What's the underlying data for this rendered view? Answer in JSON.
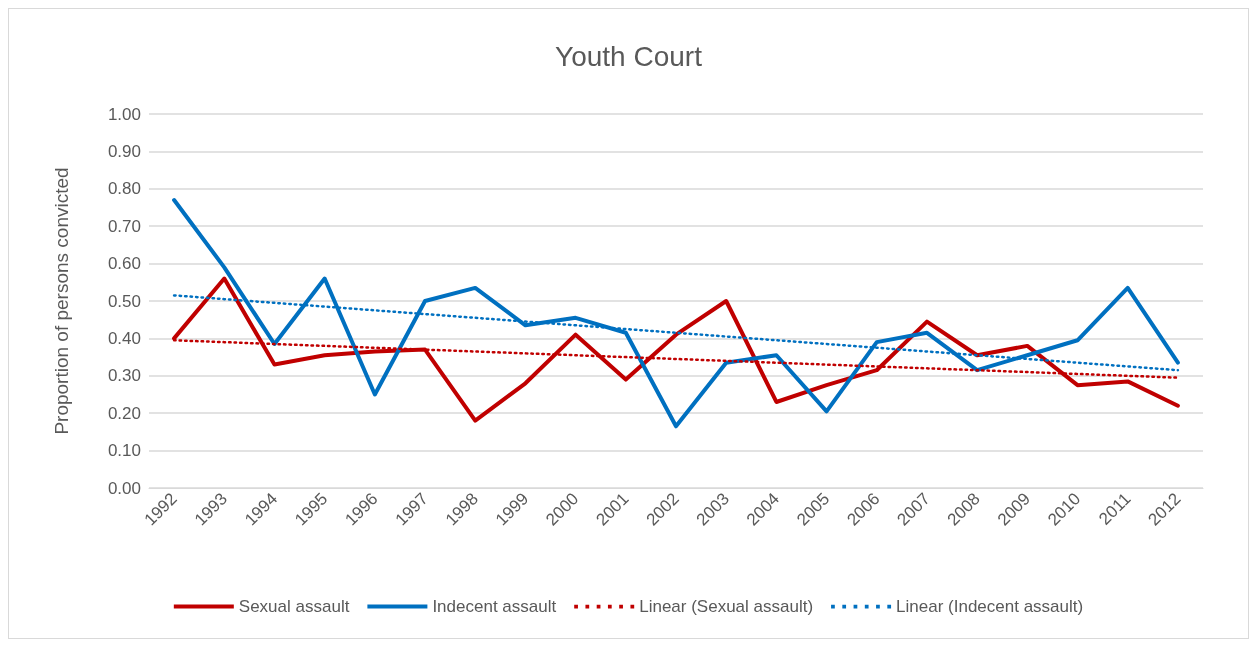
{
  "chart_data": {
    "type": "line",
    "title": "Youth Court",
    "ylabel": "Proportion of persons convicted",
    "categories": [
      "1992",
      "1993",
      "1994",
      "1995",
      "1996",
      "1997",
      "1998",
      "1999",
      "2000",
      "2001",
      "2002",
      "2003",
      "2004",
      "2005",
      "2006",
      "2007",
      "2008",
      "2009",
      "2010",
      "2011",
      "2012"
    ],
    "series": [
      {
        "name": "Sexual assault",
        "color": "#c00000",
        "line_style": "solid",
        "values": [
          0.4,
          0.56,
          0.33,
          0.355,
          0.365,
          0.37,
          0.18,
          0.28,
          0.41,
          0.29,
          0.41,
          0.5,
          0.23,
          0.275,
          0.315,
          0.445,
          0.355,
          0.38,
          0.275,
          0.285,
          0.22
        ]
      },
      {
        "name": "Indecent assault",
        "color": "#0070c0",
        "line_style": "solid",
        "values": [
          0.77,
          0.59,
          0.385,
          0.56,
          0.25,
          0.5,
          0.535,
          0.435,
          0.455,
          0.415,
          0.165,
          0.335,
          0.355,
          0.205,
          0.39,
          0.415,
          0.315,
          0.355,
          0.395,
          0.535,
          0.335
        ]
      },
      {
        "name": "Linear (Sexual assault)",
        "color": "#c00000",
        "line_style": "dotted",
        "values": [
          0.395,
          0.39,
          0.385,
          0.38,
          0.375,
          0.37,
          0.365,
          0.36,
          0.355,
          0.35,
          0.345,
          0.34,
          0.335,
          0.33,
          0.325,
          0.32,
          0.315,
          0.31,
          0.305,
          0.3,
          0.295
        ]
      },
      {
        "name": "Linear (Indecent assault)",
        "color": "#0070c0",
        "line_style": "dotted",
        "values": [
          0.515,
          0.505,
          0.495,
          0.485,
          0.475,
          0.465,
          0.455,
          0.445,
          0.435,
          0.425,
          0.415,
          0.405,
          0.395,
          0.385,
          0.375,
          0.365,
          0.355,
          0.345,
          0.335,
          0.325,
          0.315
        ]
      }
    ],
    "ylim": [
      0,
      1
    ],
    "yticks": [
      {
        "value": 0,
        "label": "0.00"
      },
      {
        "value": 0.1,
        "label": "0.10"
      },
      {
        "value": 0.2,
        "label": "0.20"
      },
      {
        "value": 0.3,
        "label": "0.30"
      },
      {
        "value": 0.4,
        "label": "0.40"
      },
      {
        "value": 0.5,
        "label": "0.50"
      },
      {
        "value": 0.6,
        "label": "0.60"
      },
      {
        "value": 0.7,
        "label": "0.70"
      },
      {
        "value": 0.8,
        "label": "0.80"
      },
      {
        "value": 0.9,
        "label": "0.90"
      },
      {
        "value": 1,
        "label": "1.00"
      }
    ],
    "grid": "y",
    "legend": "bottom",
    "marker": "none"
  }
}
